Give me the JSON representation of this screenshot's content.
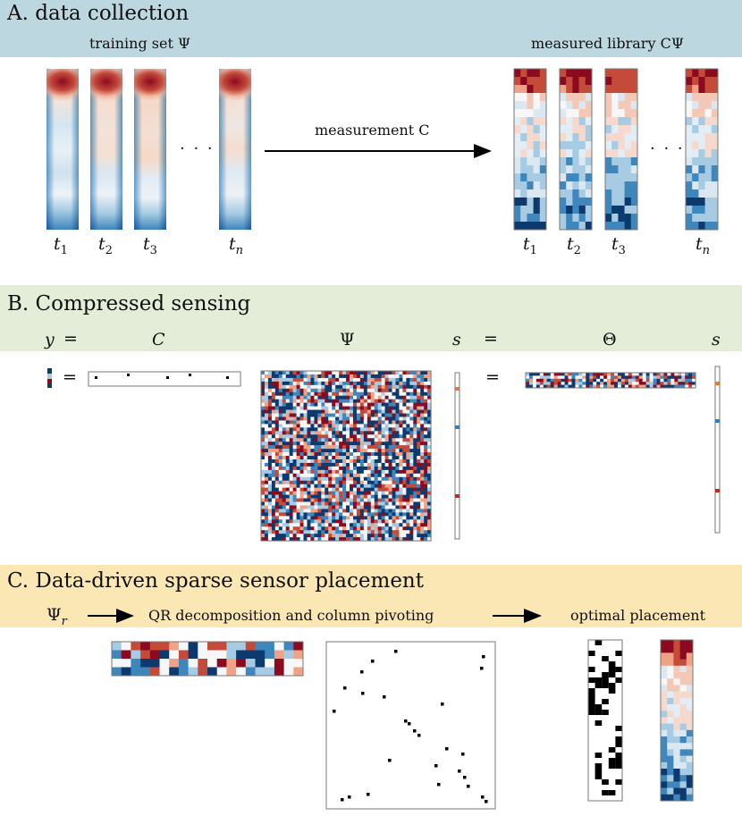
{
  "section_a": {
    "title": "A. data collection",
    "training_label": "training set Ψ",
    "library_label": "measured library CΨ",
    "arrow_label": "measurement C",
    "ellipsis": "· · ·",
    "tick_letter": "t",
    "ticks": [
      "1",
      "2",
      "3",
      "n"
    ]
  },
  "section_b": {
    "title": "B. Compressed sensing",
    "header_y": "y",
    "header_eq": "=",
    "header_C": "C",
    "header_Psi": "Ψ",
    "header_s": "s",
    "header_Theta": "Θ",
    "eq_sign": "="
  },
  "section_c": {
    "title": "C. Data-driven sparse sensor placement",
    "psi_r": "Ψ",
    "psi_r_sub": "r",
    "step_label": "QR decomposition and column pivoting",
    "result_label": "optimal placement"
  },
  "colors": {
    "band_a": "#bcd7df",
    "band_b": "#e3edd8",
    "band_c": "#fae7b4",
    "deep_red": "#8b0a1f",
    "red": "#c44a3a",
    "salmon": "#f0a286",
    "white": "#f7f7f7",
    "light_blue": "#a6cbe2",
    "blue": "#3f86bd",
    "navy": "#0d3a6e",
    "orange_marker": "#e07a34",
    "blue_marker": "#2f7cc0",
    "red_marker": "#c0281e"
  }
}
